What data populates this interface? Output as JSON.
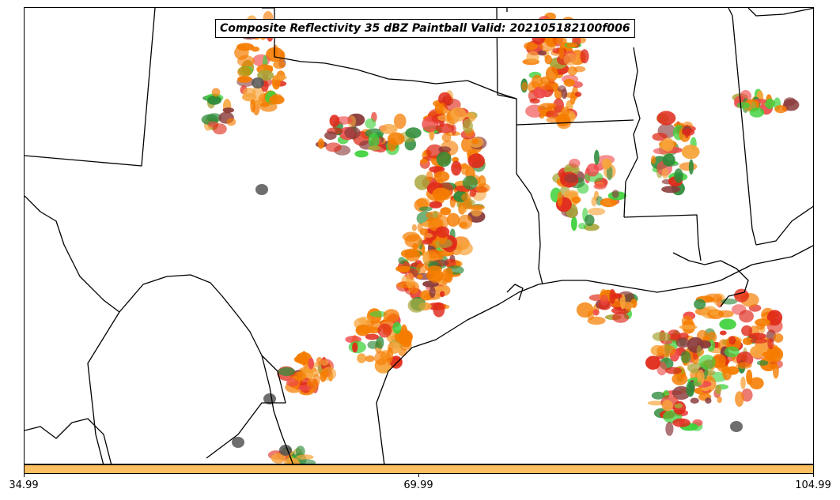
{
  "title": "Composite Reflectivity 35 dBZ Paintball Valid: 202105182100f006",
  "colorbar": {
    "color": "#fcc062",
    "ticks": [
      "34.99",
      "69.99",
      "104.99"
    ]
  },
  "palette": {
    "orange": "#f57c00",
    "light_orange": "#f7a43a",
    "red": "#e02a1a",
    "pink_red": "#ef4a4a",
    "green": "#3dd13a",
    "dark_green": "#2e8b3a",
    "olive": "#a9a63a",
    "maroon": "#8a3a3a",
    "gray": "#555555",
    "boundary": "#000000"
  }
}
